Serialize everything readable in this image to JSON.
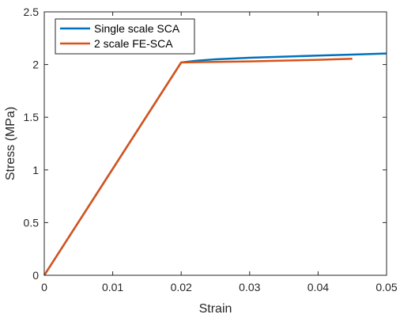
{
  "chart_data": {
    "type": "line",
    "title": "",
    "xlabel": "Strain",
    "ylabel": "Stress (MPa)",
    "xlim": [
      0,
      0.05
    ],
    "ylim": [
      0,
      2.5
    ],
    "xticks": [
      0,
      0.01,
      0.02,
      0.03,
      0.04,
      0.05
    ],
    "xtick_labels": [
      "0",
      "0.01",
      "0.02",
      "0.03",
      "0.04",
      "0.05"
    ],
    "yticks": [
      0,
      0.5,
      1,
      1.5,
      2,
      2.5
    ],
    "ytick_labels": [
      "0",
      "0.5",
      "1",
      "1.5",
      "2",
      "2.5"
    ],
    "grid": false,
    "legend_position": "top-left",
    "series": [
      {
        "name": "Single scale SCA",
        "color": "#0072BD",
        "x": [
          0,
          0.02,
          0.022,
          0.025,
          0.03,
          0.035,
          0.04,
          0.045,
          0.05
        ],
        "y": [
          0,
          2.02,
          2.035,
          2.05,
          2.065,
          2.075,
          2.085,
          2.095,
          2.105
        ]
      },
      {
        "name": "2 scale FE-SCA",
        "color": "#D95319",
        "x": [
          0,
          0.02,
          0.025,
          0.03,
          0.035,
          0.04,
          0.045
        ],
        "y": [
          0,
          2.02,
          2.025,
          2.03,
          2.037,
          2.045,
          2.055
        ]
      }
    ]
  }
}
